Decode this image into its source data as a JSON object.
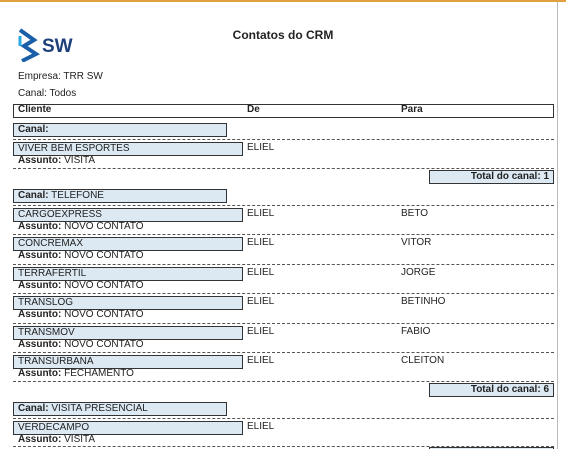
{
  "header": {
    "logo": "SW",
    "title": "Contatos do CRM",
    "filters": [
      {
        "label": "Empresa:",
        "value": "TRR SW"
      },
      {
        "label": "Canal:",
        "value": "Todos"
      }
    ]
  },
  "columns": [
    "Cliente",
    "De",
    "Para"
  ],
  "groups": [
    {
      "canal_label": "Canal:",
      "records": [
        {
          "cliente": "VIVER BEM ESPORTES",
          "de": "ELIEL",
          "assunto_label": "Assunto:",
          "assunto": "VISITA"
        }
      ],
      "total_label": "Total do canal:",
      "total": 1
    },
    {
      "canal_label": "Canal:",
      "canal": "TELEFONE",
      "records": [
        {
          "cliente": "CARGOEXPRESS",
          "de": "ELIEL",
          "para": "BETO",
          "assunto_label": "Assunto:",
          "assunto": "NOVO CONTATO"
        },
        {
          "cliente": "CONCREMAX",
          "de": "ELIEL",
          "para": "VITOR",
          "assunto_label": "Assunto:",
          "assunto": "NOVO CONTATO"
        },
        {
          "cliente": "TERRAFÉRTIL",
          "de": "ELIEL",
          "para": "JORGE",
          "assunto_label": "Assunto:",
          "assunto": "NOVO CONTATO"
        },
        {
          "cliente": "TRANSLOG",
          "de": "ELIEL",
          "para": "BETINHO",
          "assunto_label": "Assunto:",
          "assunto": "NOVO CONTATO"
        },
        {
          "cliente": "TRANSMOV",
          "de": "ELIEL",
          "para": "FABIO",
          "assunto_label": "Assunto:",
          "assunto": "NOVO CONTATO"
        },
        {
          "cliente": "TRANSURBANA",
          "de": "ELIEL",
          "para": "CLEITON",
          "assunto_label": "Assunto:",
          "assunto": "FECHAMENTO"
        }
      ],
      "total_label": "Total do canal:",
      "total": 6
    },
    {
      "canal_label": "Canal:",
      "canal": "VISITA PRESENCIAL",
      "records": [
        {
          "cliente": "VERDECAMPO",
          "de": "ELIEL",
          "assunto_label": "Assunto:",
          "assunto": "VISITA"
        }
      ]
    }
  ]
}
